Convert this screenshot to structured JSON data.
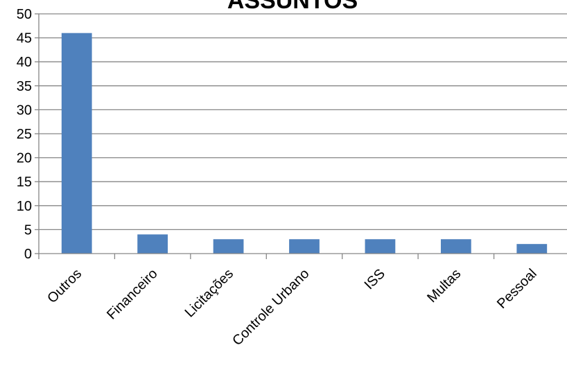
{
  "chart_data": {
    "type": "bar",
    "title": "ASSUNTOS",
    "categories": [
      "Outros",
      "Financeiro",
      "Licitações",
      "Controle Urbano",
      "ISS",
      "Multas",
      "Pessoal"
    ],
    "values": [
      46,
      4,
      3,
      3,
      3,
      3,
      2
    ],
    "ylim": [
      0,
      50
    ],
    "yticks": [
      "0",
      "5",
      "10",
      "15",
      "20",
      "25",
      "30",
      "35",
      "40",
      "45",
      "50"
    ],
    "grid": true,
    "bar_color": "#4f81bd",
    "grid_color": "#868686"
  }
}
